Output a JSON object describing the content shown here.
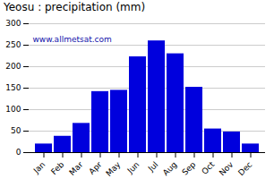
{
  "chart_data": {
    "type": "bar",
    "title": "Yeosu : precipitation (mm)",
    "categories": [
      "Jan",
      "Feb",
      "Mar",
      "Apr",
      "May",
      "Jun",
      "Jul",
      "Aug",
      "Sep",
      "Oct",
      "Nov",
      "Dec"
    ],
    "values": [
      20,
      38,
      68,
      142,
      145,
      223,
      260,
      230,
      152,
      55,
      48,
      20
    ],
    "color": "#0000DD",
    "ylim": [
      0,
      300
    ],
    "yticks": [
      0,
      50,
      100,
      150,
      200,
      250,
      300
    ],
    "grid": true,
    "annotations": [
      "www.allmetsat.com"
    ]
  }
}
